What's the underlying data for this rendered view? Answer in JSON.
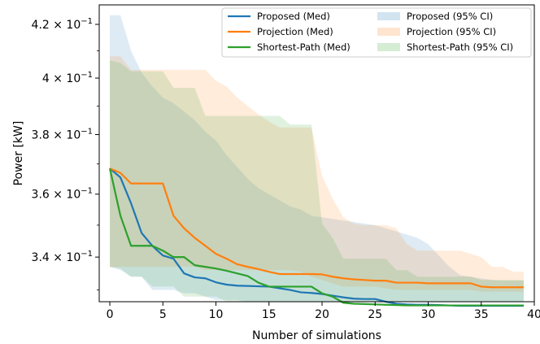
{
  "chart_data": {
    "type": "line",
    "title": "",
    "xlabel": "Number of simulations",
    "ylabel": "Power [kW]",
    "xlim": [
      -1,
      40
    ],
    "ylim": [
      0.3265,
      0.4275
    ],
    "y_scale": "log",
    "grid": false,
    "legend_position": "top-right",
    "x_ticks": [
      0,
      5,
      10,
      15,
      20,
      25,
      30,
      35,
      40
    ],
    "x_tick_labels": [
      "0",
      "5",
      "10",
      "15",
      "20",
      "25",
      "30",
      "35",
      "40"
    ],
    "y_ticks": [
      0.34,
      0.36,
      0.38,
      0.4,
      0.42
    ],
    "y_tick_labels": [
      {
        "mantissa": "3.4",
        "base": "10",
        "exponent": "−1"
      },
      {
        "mantissa": "3.6",
        "base": "10",
        "exponent": "−1"
      },
      {
        "mantissa": "3.8",
        "base": "10",
        "exponent": "−1"
      },
      {
        "mantissa": "4",
        "base": "10",
        "exponent": "−1"
      },
      {
        "mantissa": "4.2",
        "base": "10",
        "exponent": "−1"
      }
    ],
    "x": [
      0,
      1,
      2,
      3,
      4,
      5,
      6,
      7,
      8,
      9,
      10,
      11,
      12,
      13,
      14,
      15,
      16,
      17,
      18,
      19,
      20,
      21,
      22,
      23,
      24,
      25,
      26,
      27,
      28,
      29,
      30,
      31,
      32,
      33,
      34,
      35,
      36,
      37,
      38,
      39
    ],
    "series": [
      {
        "name": "Proposed (Med)",
        "color": "#1f77b4",
        "values": [
          0.3685,
          0.3655,
          0.357,
          0.3475,
          0.3435,
          0.3405,
          0.3395,
          0.335,
          0.3338,
          0.3335,
          0.3323,
          0.3316,
          0.3313,
          0.3312,
          0.3311,
          0.331,
          0.3305,
          0.33,
          0.3293,
          0.3291,
          0.3288,
          0.3283,
          0.3278,
          0.3274,
          0.3273,
          0.3273,
          0.3265,
          0.3259,
          0.3257,
          0.3256,
          0.3256,
          0.3255,
          0.3254,
          0.3253,
          0.3253,
          0.3253,
          0.3253,
          0.3253,
          0.3253,
          0.3253
        ]
      },
      {
        "name": "Projection (Med)",
        "color": "#ff7f0e",
        "values": [
          0.3685,
          0.367,
          0.3635,
          0.3635,
          0.3635,
          0.3635,
          0.353,
          0.349,
          0.346,
          0.3435,
          0.341,
          0.3395,
          0.3378,
          0.337,
          0.3363,
          0.3355,
          0.3348,
          0.3348,
          0.3348,
          0.3348,
          0.3347,
          0.334,
          0.3335,
          0.3332,
          0.333,
          0.3328,
          0.3328,
          0.3322,
          0.3322,
          0.3322,
          0.332,
          0.332,
          0.332,
          0.332,
          0.332,
          0.331,
          0.3308,
          0.3308,
          0.3308,
          0.3308
        ]
      },
      {
        "name": "Shortest-Path (Med)",
        "color": "#2ca02c",
        "values": [
          0.3685,
          0.353,
          0.3435,
          0.3435,
          0.3435,
          0.342,
          0.34,
          0.34,
          0.3375,
          0.337,
          0.3365,
          0.3358,
          0.335,
          0.3342,
          0.3322,
          0.331,
          0.331,
          0.331,
          0.331,
          0.331,
          0.329,
          0.328,
          0.3262,
          0.3259,
          0.3258,
          0.3257,
          0.3256,
          0.3255,
          0.3254,
          0.3254,
          0.3254,
          0.3254,
          0.3254,
          0.3254,
          0.3254,
          0.3254,
          0.3254,
          0.3254,
          0.3254,
          0.3254
        ]
      }
    ],
    "bands": [
      {
        "name": "Proposed (95% CI)",
        "color": "#1f77b4",
        "alpha": 0.15,
        "upper": [
          0.4235,
          0.4235,
          0.41,
          0.402,
          0.397,
          0.393,
          0.391,
          0.388,
          0.385,
          0.381,
          0.378,
          0.373,
          0.369,
          0.365,
          0.362,
          0.36,
          0.358,
          0.356,
          0.355,
          0.353,
          0.3525,
          0.352,
          0.3515,
          0.351,
          0.3505,
          0.35,
          0.349,
          0.348,
          0.347,
          0.346,
          0.344,
          0.3405,
          0.337,
          0.3345,
          0.334,
          0.3335,
          0.333,
          0.3328,
          0.3328,
          0.3328
        ],
        "lower": [
          0.337,
          0.336,
          0.334,
          0.334,
          0.33,
          0.33,
          0.33,
          0.329,
          0.329,
          0.328,
          0.327,
          0.327,
          0.327,
          0.3265,
          0.3265,
          0.3265,
          0.3265,
          0.3265,
          0.3265,
          0.3265,
          0.3265,
          0.3265,
          0.3265,
          0.3265,
          0.3265,
          0.3265,
          0.3265,
          0.3265,
          0.3265,
          0.3265,
          0.3265,
          0.3265,
          0.3265,
          0.3265,
          0.3265,
          0.3265,
          0.3265,
          0.3265,
          0.3265,
          0.3265
        ]
      },
      {
        "name": "Projection (95% CI)",
        "color": "#ff7f0e",
        "alpha": 0.15,
        "upper": [
          0.408,
          0.408,
          0.403,
          0.403,
          0.403,
          0.403,
          0.403,
          0.403,
          0.403,
          0.403,
          0.399,
          0.397,
          0.393,
          0.39,
          0.387,
          0.3845,
          0.3825,
          0.3825,
          0.3825,
          0.3825,
          0.366,
          0.3585,
          0.3525,
          0.3505,
          0.35,
          0.35,
          0.35,
          0.349,
          0.344,
          0.342,
          0.342,
          0.342,
          0.342,
          0.342,
          0.341,
          0.34,
          0.337,
          0.337,
          0.3355,
          0.3355
        ],
        "lower": [
          0.337,
          0.337,
          0.337,
          0.337,
          0.337,
          0.337,
          0.337,
          0.337,
          0.337,
          0.336,
          0.336,
          0.336,
          0.336,
          0.336,
          0.336,
          0.336,
          0.336,
          0.336,
          0.3355,
          0.334,
          0.333,
          0.332,
          0.331,
          0.331,
          0.331,
          0.331,
          0.3305,
          0.33,
          0.33,
          0.33,
          0.33,
          0.33,
          0.33,
          0.33,
          0.33,
          0.3295,
          0.3295,
          0.3295,
          0.3295,
          0.3295
        ]
      },
      {
        "name": "Shortest-Path (95% CI)",
        "color": "#2ca02c",
        "alpha": 0.15,
        "upper": [
          0.4065,
          0.4055,
          0.4025,
          0.4025,
          0.4025,
          0.4025,
          0.3965,
          0.3965,
          0.3965,
          0.3865,
          0.3865,
          0.3865,
          0.3865,
          0.3865,
          0.3865,
          0.3865,
          0.3865,
          0.3835,
          0.3835,
          0.3835,
          0.3505,
          0.346,
          0.3395,
          0.3395,
          0.3395,
          0.3395,
          0.3395,
          0.336,
          0.336,
          0.334,
          0.334,
          0.334,
          0.334,
          0.334,
          0.334,
          0.333,
          0.333,
          0.333,
          0.333,
          0.333
        ],
        "lower": [
          0.337,
          0.3365,
          0.334,
          0.334,
          0.331,
          0.331,
          0.331,
          0.328,
          0.328,
          0.328,
          0.328,
          0.3265,
          0.3265,
          0.3265,
          0.3265,
          0.3265,
          0.3265,
          0.3265,
          0.3265,
          0.3265,
          0.3265,
          0.3265,
          0.3265,
          0.3265,
          0.3265,
          0.3265,
          0.3265,
          0.3265,
          0.3265,
          0.3265,
          0.3265,
          0.3265,
          0.3265,
          0.3265,
          0.3265,
          0.3265,
          0.3265,
          0.3265,
          0.3265,
          0.3265
        ]
      }
    ]
  }
}
